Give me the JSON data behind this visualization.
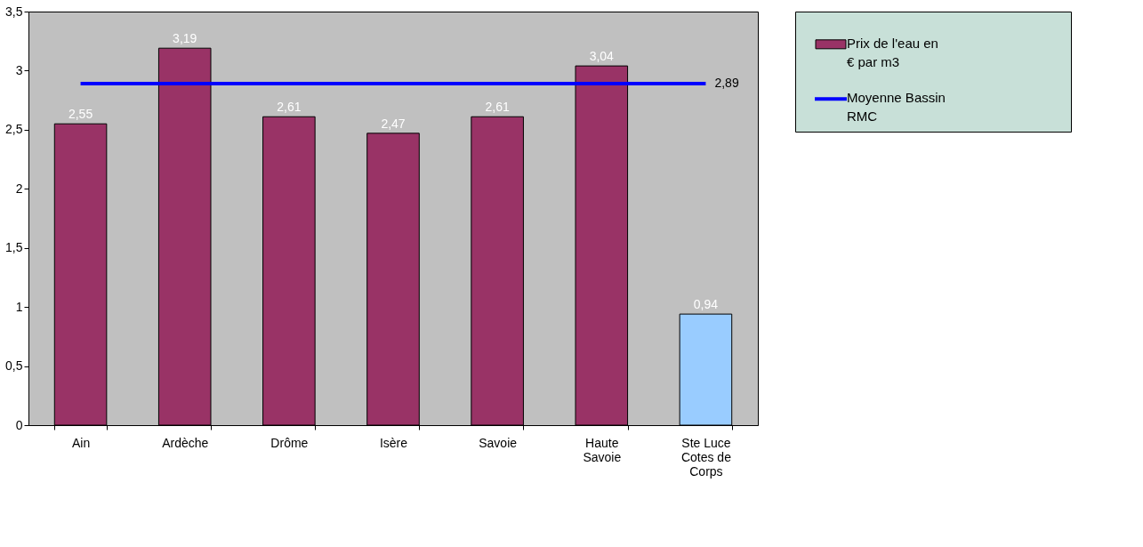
{
  "chart_data": {
    "type": "bar",
    "categories": [
      "Ain",
      "Ardèche",
      "Drôme",
      "Isère",
      "Savoie",
      "Haute Savoie",
      "Ste Luce Cotes de Corps"
    ],
    "series": [
      {
        "name": "Prix de l'eau en € par m3",
        "colors": [
          "#993366",
          "#993366",
          "#993366",
          "#993366",
          "#993366",
          "#993366",
          "#99ccff"
        ],
        "values": [
          2.55,
          3.19,
          2.61,
          2.47,
          2.61,
          3.04,
          0.94
        ],
        "value_labels": [
          "2,55",
          "3,19",
          "2,61",
          "2,47",
          "2,61",
          "3,04",
          "0,94"
        ]
      },
      {
        "name": "Moyenne Bassin RMC",
        "type": "line",
        "color": "#0000ff",
        "values": [
          2.89,
          2.89,
          2.89,
          2.89,
          2.89,
          2.89,
          2.89
        ],
        "value_labels": [
          null,
          null,
          null,
          null,
          null,
          null,
          "2,89"
        ]
      }
    ],
    "ylim": [
      0,
      3.5
    ],
    "yticks": [
      0,
      {
        "value": 0.5,
        "label": "0,5"
      },
      1,
      {
        "value": 1.5,
        "label": "1,5"
      },
      2,
      {
        "value": 2.5,
        "label": "2,5"
      },
      3,
      {
        "value": 3.5,
        "label": "3,5"
      }
    ],
    "grid": false,
    "legend": "right",
    "marker": "none"
  }
}
